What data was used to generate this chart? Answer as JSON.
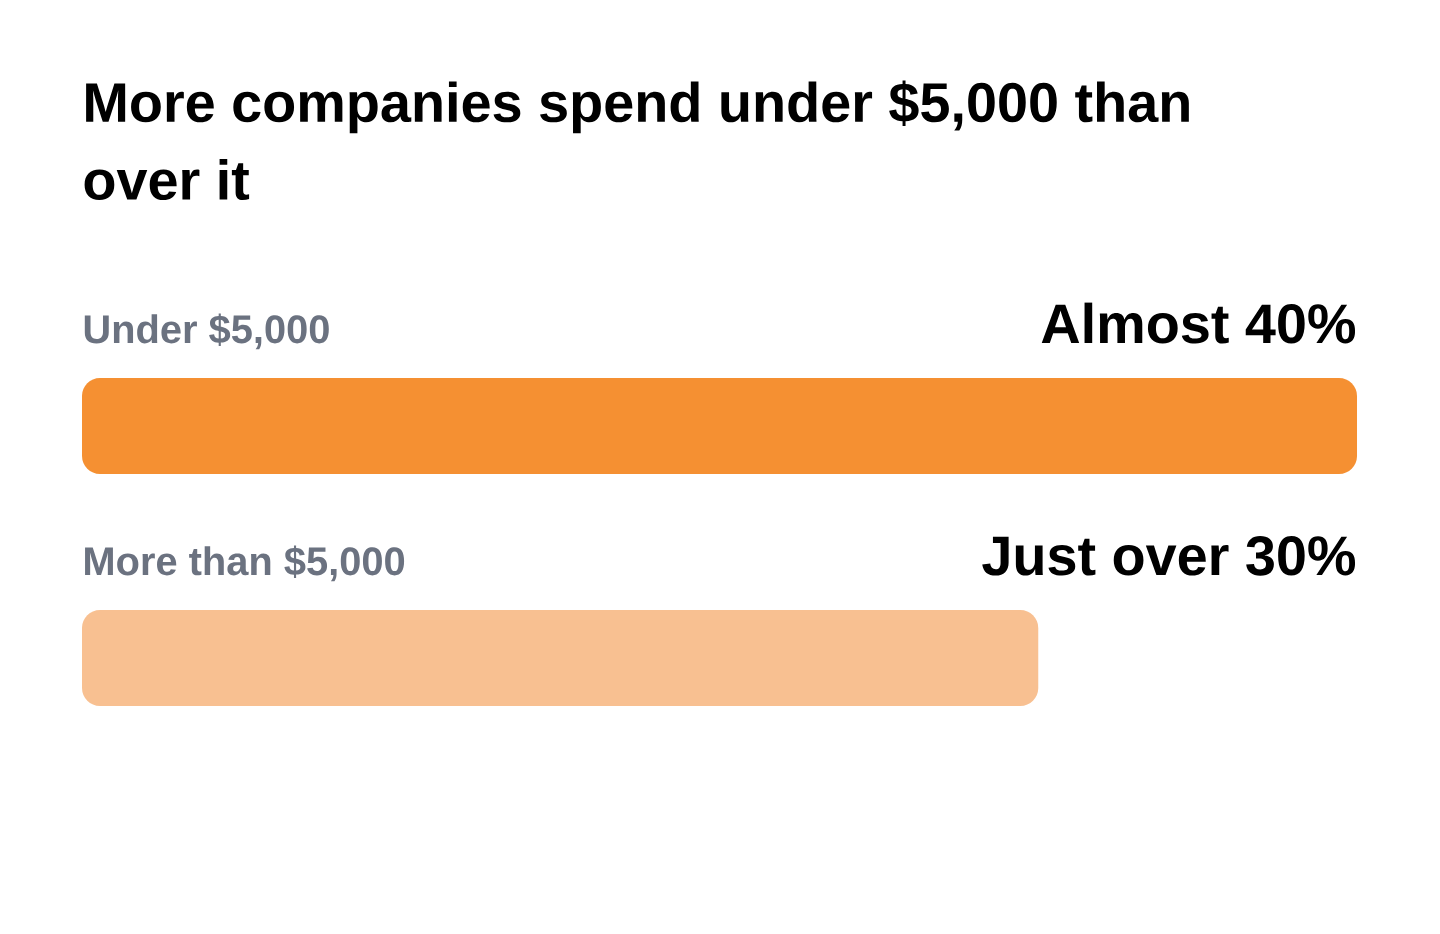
{
  "chart_data": {
    "type": "bar",
    "orientation": "horizontal",
    "title": "More companies spend under $5,000 than over it",
    "categories": [
      "Under $5,000",
      "More than $5,000"
    ],
    "values": [
      40,
      30
    ],
    "colors": [
      "#f59032",
      "#f8c091"
    ],
    "value_labels": [
      "Almost 40%",
      "Just over 30%"
    ]
  }
}
